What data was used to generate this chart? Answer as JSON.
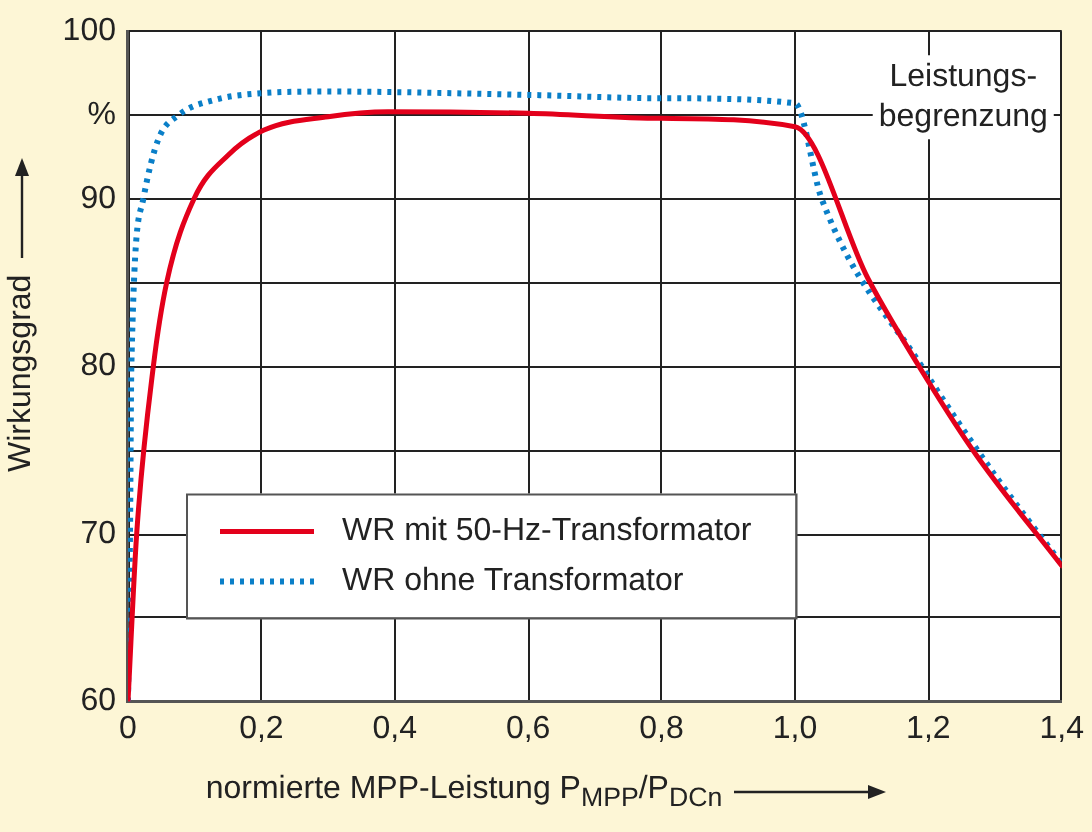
{
  "chart_data": {
    "type": "line",
    "xlabel": "normierte MPP-Leistung P$_{MPP}$/P$_{DCn}$",
    "ylabel": "Wirkungsgrad",
    "xlim": [
      0,
      1.4
    ],
    "ylim": [
      60,
      100
    ],
    "xticks": [
      0,
      {
        "value": 0.2,
        "label": "0,2"
      },
      {
        "value": 0.4,
        "label": "0,4"
      },
      {
        "value": 0.6,
        "label": "0,6"
      },
      {
        "value": 0.8,
        "label": "0,8"
      },
      {
        "value": 1,
        "label": "1,0"
      },
      {
        "value": 1.2,
        "label": "1,2"
      },
      {
        "value": 1.4,
        "label": "1,4"
      }
    ],
    "yticks": [
      60,
      {
        "value": 65,
        "label": null
      },
      70,
      {
        "value": 75,
        "label": null
      },
      80,
      {
        "value": 85,
        "label": null
      },
      90,
      {
        "value": 95,
        "label": "%"
      },
      100
    ],
    "grid": true,
    "legend": "bottom left",
    "marker": "none",
    "annotations": [
      "Leistungs-\nbegrenzung"
    ],
    "series": [
      {
        "name": "WR mit 50-Hz-Transformator",
        "color": "#e3001b",
        "line_style": "solid",
        "x": [
          0,
          0.013,
          0.038,
          0.058,
          0.099,
          0.15,
          0.204,
          0.3,
          0.39,
          0.6,
          0.8,
          1.0,
          1.11,
          1.2,
          1.272,
          1.4
        ],
        "values": [
          60,
          70,
          80,
          85,
          90,
          92.6,
          94.1,
          94.9,
          95.2,
          95.1,
          94.8,
          94.3,
          85.2,
          79.1,
          74.7,
          68.1
        ]
      },
      {
        "name": "WR ohne Transformator",
        "color": "#0a7fc8",
        "line_style": "dotted",
        "x": [
          0,
          0.003,
          0.005,
          0.023,
          0.045,
          0.076,
          0.13,
          0.2,
          0.3,
          0.6,
          0.8,
          1.0,
          1.04,
          1.19,
          1.3,
          1.4
        ],
        "values": [
          60,
          70,
          80,
          90,
          93.5,
          95,
          95.9,
          96.3,
          96.4,
          96.2,
          96.0,
          95.7,
          90.0,
          80.0,
          73.5,
          68.2
        ]
      }
    ]
  }
}
